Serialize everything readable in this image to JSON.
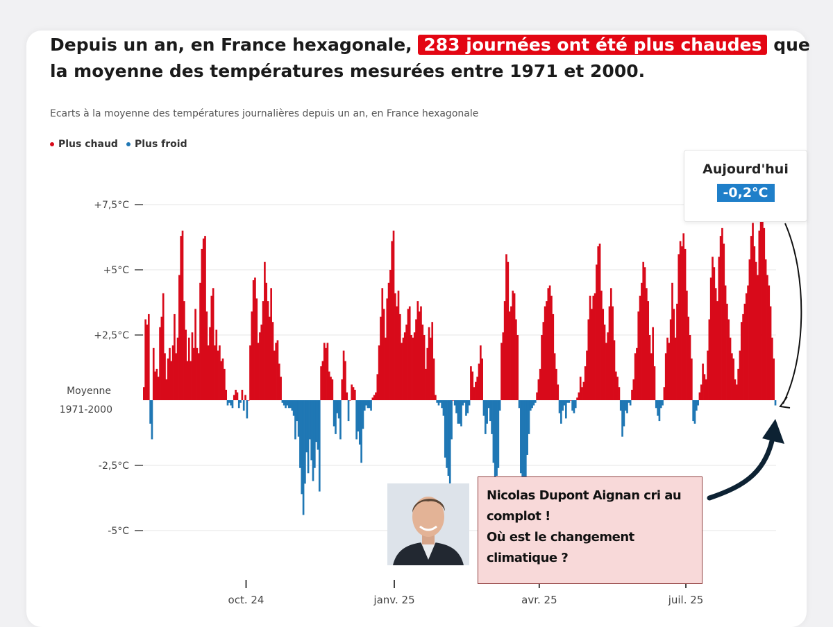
{
  "headline": {
    "part1": "Depuis un an, en France hexagonale,",
    "highlight": "283 journées ont été plus chaudes",
    "part2": "que la moyenne des températures mesurées entre 1971 et 2000."
  },
  "subtitle": "Ecarts à la moyenne des températures journalières depuis un an, en France hexagonale",
  "legend": [
    {
      "label": "Plus chaud",
      "color": "#d80a1a"
    },
    {
      "label": "Plus froid",
      "color": "#1f77b4"
    }
  ],
  "today": {
    "label": "Aujourd'hui",
    "value": "-0,2°C"
  },
  "callout": {
    "lines": [
      "Nicolas Dupont Aignan cri au",
      "complot !",
      "Où est le changement",
      "climatique ?"
    ]
  },
  "colors": {
    "warm": "#d80a1a",
    "cold": "#1f77b4",
    "accent": "#e30613",
    "today": "#1f7fc9"
  },
  "chart_data": {
    "type": "bar",
    "title": "",
    "xlabel": "",
    "ylabel": "",
    "ylim": [
      -5.5,
      7.8
    ],
    "y_ticks": [
      {
        "value": 7.5,
        "label": "+7,5°C"
      },
      {
        "value": 5,
        "label": "+5°C"
      },
      {
        "value": 2.5,
        "label": "+2,5°C"
      },
      {
        "value": 0,
        "label_lines": [
          "Moyenne",
          "1971-2000"
        ]
      },
      {
        "value": -2.5,
        "label": "-2,5°C"
      },
      {
        "value": -5,
        "label": "-5°C"
      }
    ],
    "x_ticks": [
      {
        "label": "oct. 24",
        "day_index": 64
      },
      {
        "label": "janv. 25",
        "day_index": 156
      },
      {
        "label": "avr. 25",
        "day_index": 246
      },
      {
        "label": "juil. 25",
        "day_index": 337
      }
    ],
    "grid": true,
    "legend_position": "top-left",
    "series": [
      {
        "name": "Écart journalier (°C)",
        "values": [
          0.5,
          3.1,
          2.9,
          3.3,
          -0.9,
          -1.5,
          2.0,
          1.1,
          1.2,
          0.9,
          2.8,
          3.2,
          4.1,
          1.8,
          0.8,
          1.6,
          2.0,
          1.5,
          2.1,
          3.3,
          1.8,
          2.4,
          4.8,
          6.3,
          6.5,
          3.8,
          2.7,
          1.5,
          2.4,
          1.5,
          2.6,
          2.0,
          3.5,
          2.0,
          1.8,
          4.5,
          5.8,
          6.2,
          6.3,
          3.4,
          2.1,
          2.8,
          4.0,
          4.3,
          2.1,
          2.7,
          1.9,
          2.1,
          1.5,
          1.6,
          1.2,
          0.4,
          -0.2,
          -0.1,
          -0.2,
          -0.3,
          0.2,
          0.4,
          0.3,
          -0.3,
          -0.1,
          0.4,
          -0.4,
          0.2,
          -0.7,
          0.0,
          2.1,
          3.4,
          4.6,
          4.7,
          3.9,
          2.2,
          2.6,
          2.9,
          3.8,
          5.3,
          4.5,
          3.8,
          3.2,
          4.3,
          3.0,
          1.9,
          2.2,
          2.3,
          1.4,
          0.9,
          -0.1,
          -0.2,
          -0.3,
          -0.2,
          -0.3,
          -0.3,
          -0.4,
          -0.6,
          -1.5,
          -0.8,
          -1.4,
          -2.6,
          -3.6,
          -4.4,
          -3.2,
          -2.0,
          -2.8,
          -1.5,
          -2.3,
          -3.1,
          -2.6,
          -1.6,
          -1.9,
          -3.5,
          1.3,
          1.5,
          2.2,
          2.0,
          2.2,
          1.1,
          0.9,
          0.8,
          -1.0,
          -1.3,
          -0.5,
          -0.7,
          -1.5,
          0.8,
          1.9,
          1.5,
          0.3,
          -0.8,
          0.0,
          0.6,
          0.5,
          0.4,
          -1.5,
          -1.2,
          -1.7,
          -2.4,
          -1.1,
          -0.4,
          -0.2,
          -0.3,
          -0.3,
          -0.4,
          0.1,
          0.2,
          0.3,
          1.0,
          2.1,
          3.2,
          4.3,
          3.5,
          2.4,
          3.9,
          4.5,
          5.0,
          6.1,
          6.5,
          4.1,
          3.6,
          4.2,
          3.3,
          2.2,
          2.4,
          2.6,
          2.9,
          3.5,
          3.6,
          2.5,
          2.4,
          2.6,
          3.1,
          3.8,
          3.4,
          3.6,
          2.9,
          2.5,
          1.2,
          2.0,
          2.8,
          2.4,
          3.0,
          1.6,
          0.2,
          -0.1,
          -0.2,
          -0.1,
          -0.3,
          -0.6,
          -2.2,
          -2.6,
          -2.9,
          -3.2,
          -1.5,
          0.0,
          -0.2,
          -0.5,
          -0.9,
          -0.9,
          -1.0,
          -0.2,
          -0.1,
          -0.6,
          -0.5,
          -0.2,
          1.3,
          1.1,
          0.5,
          0.7,
          0.9,
          1.4,
          2.1,
          1.6,
          -0.6,
          -1.3,
          -0.9,
          -0.3,
          -0.8,
          -1.3,
          -2.4,
          -3.5,
          -2.9,
          -2.6,
          -0.4,
          2.2,
          2.6,
          3.8,
          5.6,
          5.3,
          3.4,
          3.6,
          4.2,
          4.1,
          3.1,
          2.5,
          -0.3,
          -2.8,
          -3.6,
          -4.6,
          -3.8,
          -2.1,
          -1.3,
          -0.4,
          -0.3,
          -0.2,
          -0.1,
          0.3,
          0.8,
          1.2,
          2.5,
          3.0,
          3.6,
          3.8,
          4.3,
          4.4,
          4.0,
          3.3,
          1.8,
          1.2,
          0.6,
          -0.5,
          -0.9,
          -0.4,
          -0.2,
          -0.7,
          -0.1,
          -0.1,
          0.0,
          -0.4,
          -0.5,
          -0.3,
          0.1,
          0.3,
          0.9,
          0.5,
          0.7,
          1.3,
          1.9,
          3.1,
          4.0,
          3.5,
          4.0,
          4.1,
          5.2,
          5.9,
          6.0,
          4.2,
          3.5,
          2.9,
          2.2,
          2.6,
          3.6,
          4.3,
          3.6,
          2.3,
          1.1,
          0.9,
          0.5,
          -0.4,
          -1.4,
          -1.0,
          -0.4,
          -0.5,
          -0.1,
          -0.2,
          0.4,
          0.8,
          1.8,
          2.0,
          3.4,
          4.0,
          4.5,
          5.3,
          5.1,
          4.3,
          3.8,
          2.5,
          1.8,
          2.8,
          1.3,
          -0.3,
          -0.6,
          -0.8,
          -0.3,
          -0.2,
          0.5,
          1.8,
          2.4,
          2.2,
          3.1,
          4.5,
          3.5,
          2.4,
          3.7,
          5.6,
          6.1,
          5.9,
          6.4,
          5.8,
          4.2,
          3.2,
          2.5,
          1.6,
          -0.8,
          -0.9,
          -0.4,
          -0.2,
          0.3,
          0.6,
          1.4,
          1.0,
          0.8,
          1.9,
          3.1,
          4.7,
          5.5,
          5.1,
          4.3,
          3.8,
          5.5,
          6.3,
          6.6,
          6.0,
          4.4,
          3.7,
          3.1,
          2.4,
          1.8,
          1.6,
          0.8,
          0.6,
          1.2,
          1.9,
          3.0,
          3.3,
          3.7,
          4.1,
          4.4,
          5.4,
          6.3,
          6.8,
          5.9,
          5.3,
          4.8,
          6.5,
          6.9,
          7.0,
          6.6,
          5.4,
          4.8,
          4.4,
          3.6,
          2.4,
          1.6,
          -0.2
        ]
      }
    ]
  }
}
